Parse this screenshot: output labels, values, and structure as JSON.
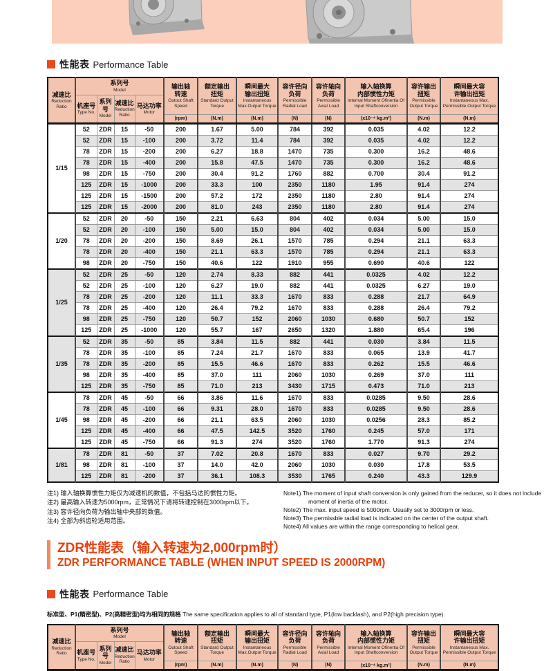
{
  "colors": {
    "accent_orange": "#e8491d",
    "title_red": "#e8400c",
    "table_header_pink": "#f3c5b1",
    "hero_band_pink": "#fbcfbc",
    "row_alt_gray": "#e3e3e3"
  },
  "section1": {
    "zh": "性能表",
    "en": "Performance Table"
  },
  "section2": {
    "zh": "性能表",
    "en": "Performance Table"
  },
  "red_title": {
    "zh": "ZDR性能表（输入转速为2,000rpm时）",
    "en": "ZDR PERFORMANCE TABLE (WHEN INPUT SPEED IS 2000RPM)"
  },
  "subtitle": {
    "zh": "标准型、P1(精密型)、P2(高精密型)均为相同的规格",
    "en": "The same specification applies to all of standard type, P1(low backlash), and P2(high precision type)."
  },
  "table": {
    "header": {
      "reduction_ratio": {
        "zh": "减速比",
        "en": "Reduction Ratio"
      },
      "model_group": {
        "zh": "系列号",
        "en": "Model"
      },
      "sub": [
        {
          "key": "type-no",
          "zh": "机座号",
          "en": "Type No."
        },
        {
          "key": "model",
          "zh": "系列号",
          "en": "Model"
        },
        {
          "key": "ratio",
          "zh": "减速比",
          "en": "Reduction Ratio"
        },
        {
          "key": "motor",
          "zh": "马达功率",
          "en": "Motor"
        }
      ],
      "cols": [
        {
          "key": "output-shaft-speed",
          "zh": "输出轴\n转速",
          "en": "Outout Shaft Speed",
          "unit": "(rpm)"
        },
        {
          "key": "standard-output-torque",
          "zh": "额定输出\n扭矩",
          "en": "Standard Output Torque",
          "unit": "(N.m)"
        },
        {
          "key": "instantaneous-max-output-torque",
          "zh": "瞬间最大\n输出扭矩",
          "en": "Instantaneous Max.Output Torque",
          "unit": "(N.m)"
        },
        {
          "key": "permissible-radial-load",
          "zh": "容许径向\n负荷",
          "en": "Permissible Radial Load",
          "unit": "(N)"
        },
        {
          "key": "permissible-axial-load",
          "zh": "容许轴向\n负荷",
          "en": "Permissible Axial Load",
          "unit": "(N)"
        },
        {
          "key": "internal-moment-of-inertia",
          "zh": "输入轴换算\n内部惯性力矩",
          "en": "Internal Moment Ofinertia Of Input Shaftconversion",
          "unit": "(x10⁻⁴ kg.m²)"
        },
        {
          "key": "permissible-output-torque",
          "zh": "容许输出\n扭矩",
          "en": "Permissible Output Torque",
          "unit": "(N.m)"
        },
        {
          "key": "instantaneous-max-permissible-output-torque",
          "zh": "瞬间最大容\n许输出扭矩",
          "en": "Instantaneous Max. Permissible Output Torque",
          "unit": "(N.m)"
        }
      ]
    },
    "groups": [
      {
        "ratio": "1/15",
        "rows": [
          [
            "52",
            "ZDR",
            "15",
            "-50",
            "200",
            "1.67",
            "5.00",
            "784",
            "392",
            "0.035",
            "4.02",
            "12.2"
          ],
          [
            "52",
            "ZDR",
            "15",
            "-100",
            "200",
            "3.72",
            "11.4",
            "784",
            "392",
            "0.035",
            "4.02",
            "12.2"
          ],
          [
            "78",
            "ZDR",
            "15",
            "-200",
            "200",
            "6.27",
            "18.8",
            "1470",
            "735",
            "0.300",
            "16.2",
            "48.6"
          ],
          [
            "78",
            "ZDR",
            "15",
            "-400",
            "200",
            "15.8",
            "47.5",
            "1470",
            "735",
            "0.300",
            "16.2",
            "48.6"
          ],
          [
            "98",
            "ZDR",
            "15",
            "-750",
            "200",
            "30.4",
            "91.2",
            "1760",
            "882",
            "0.700",
            "30.4",
            "91.2"
          ],
          [
            "125",
            "ZDR",
            "15",
            "-1000",
            "200",
            "33.3",
            "100",
            "2350",
            "1180",
            "1.95",
            "91.4",
            "274"
          ],
          [
            "125",
            "ZDR",
            "15",
            "-1500",
            "200",
            "57.2",
            "172",
            "2350",
            "1180",
            "2.80",
            "91.4",
            "274"
          ],
          [
            "125",
            "ZDR",
            "15",
            "-2000",
            "200",
            "81.0",
            "243",
            "2350",
            "1180",
            "2.80",
            "91.4",
            "274"
          ]
        ]
      },
      {
        "ratio": "1/20",
        "rows": [
          [
            "52",
            "ZDR",
            "20",
            "-50",
            "150",
            "2.21",
            "6.63",
            "804",
            "402",
            "0.034",
            "5.00",
            "15.0"
          ],
          [
            "52",
            "ZDR",
            "20",
            "-100",
            "150",
            "5.00",
            "15.0",
            "804",
            "402",
            "0.034",
            "5.00",
            "15.0"
          ],
          [
            "78",
            "ZDR",
            "20",
            "-200",
            "150",
            "8.69",
            "26.1",
            "1570",
            "785",
            "0.294",
            "21.1",
            "63.3"
          ],
          [
            "78",
            "ZDR",
            "20",
            "-400",
            "150",
            "21.1",
            "63.3",
            "1570",
            "785",
            "0.294",
            "21.1",
            "63.3"
          ],
          [
            "98",
            "ZDR",
            "20",
            "-750",
            "150",
            "40.6",
            "122",
            "1910",
            "955",
            "0.690",
            "40.6",
            "122"
          ]
        ]
      },
      {
        "ratio": "1/25",
        "rows": [
          [
            "52",
            "ZDR",
            "25",
            "-50",
            "120",
            "2.74",
            "8.33",
            "882",
            "441",
            "0.0325",
            "4.02",
            "12.2"
          ],
          [
            "52",
            "ZDR",
            "25",
            "-100",
            "120",
            "6.27",
            "19.0",
            "882",
            "441",
            "0.0325",
            "6.27",
            "19.0"
          ],
          [
            "78",
            "ZDR",
            "25",
            "-200",
            "120",
            "11.1",
            "33.3",
            "1670",
            "833",
            "0.288",
            "21.7",
            "64.9"
          ],
          [
            "78",
            "ZDR",
            "25",
            "-400",
            "120",
            "26.4",
            "79.2",
            "1670",
            "833",
            "0.288",
            "26.4",
            "79.2"
          ],
          [
            "98",
            "ZDR",
            "25",
            "-750",
            "120",
            "50.7",
            "152",
            "2060",
            "1030",
            "0.680",
            "50.7",
            "152"
          ],
          [
            "125",
            "ZDR",
            "25",
            "-1000",
            "120",
            "55.7",
            "167",
            "2650",
            "1320",
            "1.880",
            "65.4",
            "196"
          ]
        ]
      },
      {
        "ratio": "1/35",
        "rows": [
          [
            "52",
            "ZDR",
            "35",
            "-50",
            "85",
            "3.84",
            "11.5",
            "882",
            "441",
            "0.030",
            "3.84",
            "11.5"
          ],
          [
            "78",
            "ZDR",
            "35",
            "-100",
            "85",
            "7.24",
            "21.7",
            "1670",
            "833",
            "0.065",
            "13.9",
            "41.7"
          ],
          [
            "78",
            "ZDR",
            "35",
            "-200",
            "85",
            "15.5",
            "46.6",
            "1670",
            "833",
            "0.262",
            "15.5",
            "46.6"
          ],
          [
            "98",
            "ZDR",
            "35",
            "-400",
            "85",
            "37.0",
            "111",
            "2060",
            "1030",
            "0.269",
            "37.0",
            "111"
          ],
          [
            "125",
            "ZDR",
            "35",
            "-750",
            "85",
            "71.0",
            "213",
            "3430",
            "1715",
            "0.473",
            "71.0",
            "213"
          ]
        ]
      },
      {
        "ratio": "1/45",
        "rows": [
          [
            "78",
            "ZDR",
            "45",
            "-50",
            "66",
            "3.86",
            "11.6",
            "1670",
            "833",
            "0.0285",
            "9.50",
            "28.6"
          ],
          [
            "78",
            "ZDR",
            "45",
            "-100",
            "66",
            "9.31",
            "28.0",
            "1670",
            "833",
            "0.0285",
            "9.50",
            "28.6"
          ],
          [
            "98",
            "ZDR",
            "45",
            "-200",
            "66",
            "21.1",
            "63.5",
            "2060",
            "1030",
            "0.0256",
            "28.3",
            "85.2"
          ],
          [
            "125",
            "ZDR",
            "45",
            "-400",
            "66",
            "47.5",
            "142.5",
            "3520",
            "1760",
            "0.245",
            "57.0",
            "171"
          ],
          [
            "125",
            "ZDR",
            "45",
            "-750",
            "66",
            "91.3",
            "274",
            "3520",
            "1760",
            "1.770",
            "91.3",
            "274"
          ]
        ]
      },
      {
        "ratio": "1/81",
        "rows": [
          [
            "78",
            "ZDR",
            "81",
            "-50",
            "37",
            "7.02",
            "20.8",
            "1670",
            "833",
            "0.027",
            "9.70",
            "29.2"
          ],
          [
            "98",
            "ZDR",
            "81",
            "-100",
            "37",
            "14.0",
            "42.0",
            "2060",
            "1030",
            "0.030",
            "17.8",
            "53.5"
          ],
          [
            "125",
            "ZDR",
            "81",
            "-200",
            "37",
            "36.1",
            "108.3",
            "3530",
            "1765",
            "0.240",
            "43.3",
            "129.9"
          ]
        ]
      }
    ]
  },
  "notes_zh": [
    "注1) 输入轴换算惯性力矩仅为减速机的数值，不包括马达的惯性力矩。",
    "注2) 最高输入转速为5000rpm，正常情况下请将转速控制在3000rpm以下。",
    "注3) 容许径向负荷为输出轴中央部的数值。",
    "注4) 全部为斜齿轮适用范围。"
  ],
  "notes_en": [
    "Note1) The moment of input shaft conversion is only gained from the reducer, so it does not include moment of inertia of the motor.",
    "Note2) The max. input speed is 5000rpm. Usually set to 3000rpm or less.",
    "Note3) The permissble radial load is indicated on the center of the output shaft.",
    "Note4) All values are within the range corresponding to helical gear."
  ]
}
